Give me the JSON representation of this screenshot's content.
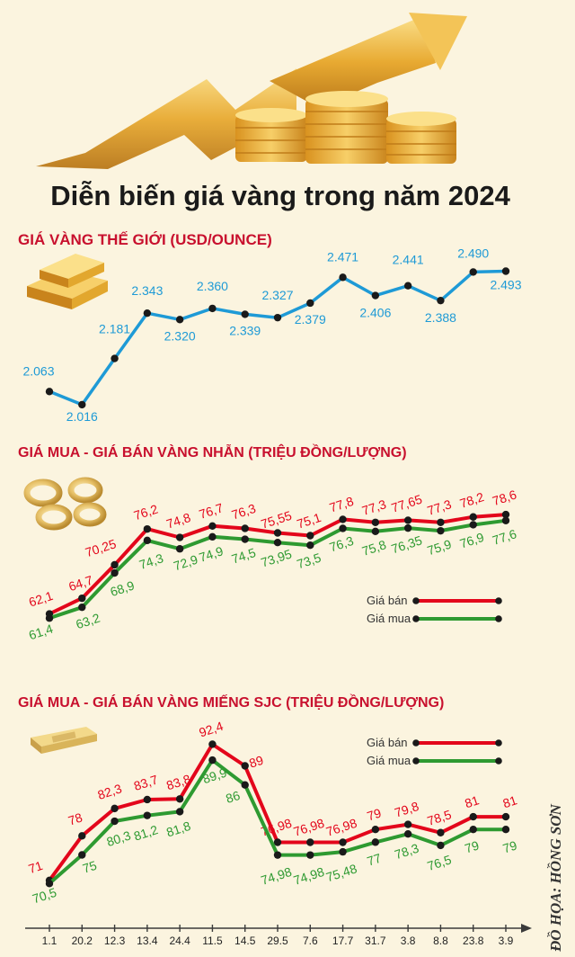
{
  "title": "Diễn biến giá vàng trong năm 2024",
  "credit": "ĐỒ HỌA: HỒNG SƠN",
  "colors": {
    "world": "#1e9ad6",
    "sell": "#e3061b",
    "buy": "#2e9a31",
    "heading": "#c8102e",
    "title": "#1a1a1a",
    "background": "#fbf4df",
    "gold": "#e2a72e"
  },
  "icons": [
    "gold-coins-arrow-icon",
    "gold-bars-icon",
    "gold-rings-icon",
    "gold-ingot-icon"
  ],
  "x_labels": [
    "1.1",
    "20.2",
    "12.3",
    "13.4",
    "24.4",
    "11.5",
    "14.5",
    "29.5",
    "7.6",
    "17.7",
    "31.7",
    "3.8",
    "8.8",
    "23.8",
    "3.9"
  ],
  "chart_data": [
    {
      "type": "line",
      "title": "GIÁ VÀNG THẾ GIỚI (USD/OUNCE)",
      "categories": [
        "1.1",
        "20.2",
        "12.3",
        "13.4",
        "24.4",
        "11.5",
        "14.5",
        "29.5",
        "7.6",
        "17.7",
        "31.7",
        "3.8",
        "8.8",
        "23.8",
        "3.9"
      ],
      "series": [
        {
          "name": "Giá vàng thế giới",
          "values": [
            2063,
            2016,
            2181,
            2343,
            2320,
            2360,
            2339,
            2327,
            2379,
            2471,
            2406,
            2441,
            2388,
            2490,
            2493
          ],
          "labels": [
            "2.063",
            "2.016",
            "2.181",
            "2.343",
            "2.320",
            "2.360",
            "2.339",
            "2.327",
            "2.379",
            "2.471",
            "2.406",
            "2.441",
            "2.388",
            "2.490",
            "2.493"
          ]
        }
      ],
      "ylim": [
        1990,
        2530
      ]
    },
    {
      "type": "line",
      "title": "GIÁ MUA - GIÁ BÁN VÀNG NHẪN (TRIỆU ĐỒNG/LƯỢNG)",
      "categories": [
        "1.1",
        "20.2",
        "12.3",
        "13.4",
        "24.4",
        "11.5",
        "14.5",
        "29.5",
        "7.6",
        "17.7",
        "31.7",
        "3.8",
        "8.8",
        "23.8",
        "3.9"
      ],
      "series": [
        {
          "name": "Giá bán",
          "values": [
            62.1,
            64.7,
            70.25,
            76.2,
            74.8,
            76.7,
            76.3,
            75.55,
            75.1,
            77.8,
            77.3,
            77.65,
            77.3,
            78.2,
            78.6
          ],
          "labels": [
            "62,1",
            "64,7",
            "70,25",
            "76,2",
            "74,8",
            "76,7",
            "76,3",
            "75,55",
            "75,1",
            "77,8",
            "77,3",
            "77,65",
            "77,3",
            "78,2",
            "78,6"
          ]
        },
        {
          "name": "Giá mua",
          "values": [
            61.4,
            63.2,
            68.9,
            74.3,
            72.9,
            74.9,
            74.5,
            73.95,
            73.5,
            76.3,
            75.8,
            76.35,
            75.9,
            76.9,
            77.6
          ],
          "labels": [
            "61,4",
            "63,2",
            "68,9",
            "74,3",
            "72,9",
            "74,9",
            "74,5",
            "73,95",
            "73,5",
            "76,3",
            "75,8",
            "76,35",
            "75,9",
            "76,9",
            "77,6"
          ]
        }
      ],
      "ylim": [
        58,
        81
      ],
      "legend": [
        "Giá bán",
        "Giá mua"
      ]
    },
    {
      "type": "line",
      "title": "GIÁ MUA - GIÁ BÁN VÀNG MIẾNG SJC (TRIỆU ĐỒNG/LƯỢNG)",
      "categories": [
        "1.1",
        "20.2",
        "12.3",
        "13.4",
        "24.4",
        "11.5",
        "14.5",
        "29.5",
        "7.6",
        "17.7",
        "31.7",
        "3.8",
        "8.8",
        "23.8",
        "3.9"
      ],
      "series": [
        {
          "name": "Giá bán",
          "values": [
            71,
            78,
            82.3,
            83.7,
            83.8,
            92.4,
            89,
            76.98,
            76.98,
            76.98,
            79,
            79.8,
            78.5,
            81,
            81
          ],
          "labels": [
            "71",
            "78",
            "82,3",
            "83,7",
            "83,8",
            "92,4",
            "89",
            "76,98",
            "76,98",
            "76,98",
            "79",
            "79,8",
            "78,5",
            "81",
            "81"
          ]
        },
        {
          "name": "Giá mua",
          "values": [
            70.5,
            75,
            80.3,
            81.2,
            81.8,
            89.9,
            86,
            74.98,
            74.98,
            75.48,
            77,
            78.3,
            76.5,
            79,
            79
          ],
          "labels": [
            "70,5",
            "75",
            "80,3",
            "81,2",
            "81,8",
            "89,9",
            "86",
            "74,98",
            "74,98",
            "75,48",
            "77",
            "78,3",
            "76,5",
            "79",
            "79"
          ]
        }
      ],
      "ylim": [
        68,
        96
      ],
      "legend": [
        "Giá bán",
        "Giá mua"
      ]
    }
  ]
}
